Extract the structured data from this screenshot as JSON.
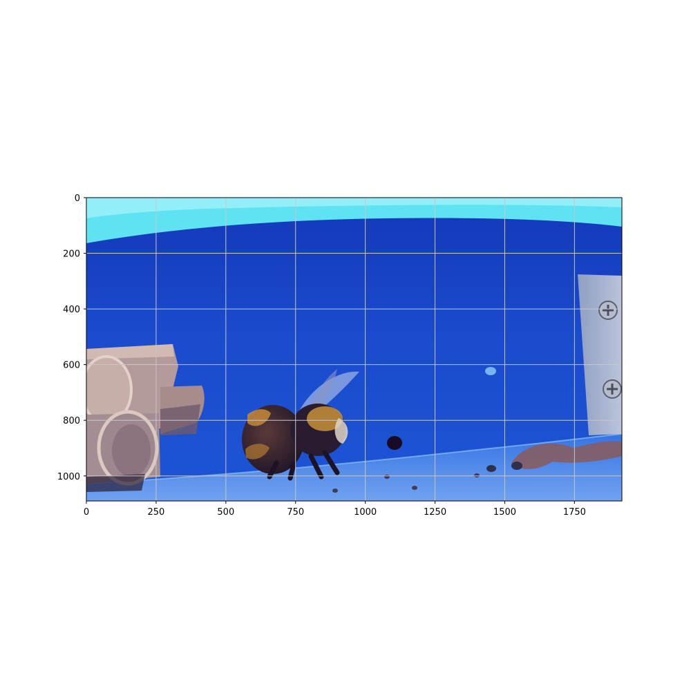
{
  "figure": {
    "image_subject": "bumblebee",
    "colors": {
      "background": "#ffffff",
      "wall_blue": "#1646c8",
      "wall_light": "#58e6f4",
      "grid": "#c8c8c8"
    }
  },
  "axes": {
    "x_range": [
      0,
      1920
    ],
    "y_range": [
      0,
      1090
    ],
    "x_ticks": [
      0,
      250,
      500,
      750,
      1000,
      1250,
      1500,
      1750
    ],
    "y_ticks": [
      0,
      200,
      400,
      600,
      800,
      1000
    ],
    "x_tick_labels": [
      "0",
      "250",
      "500",
      "750",
      "1000",
      "1250",
      "1500",
      "1750"
    ],
    "y_tick_labels": [
      "0",
      "200",
      "400",
      "600",
      "800",
      "1000"
    ],
    "grid": true
  }
}
